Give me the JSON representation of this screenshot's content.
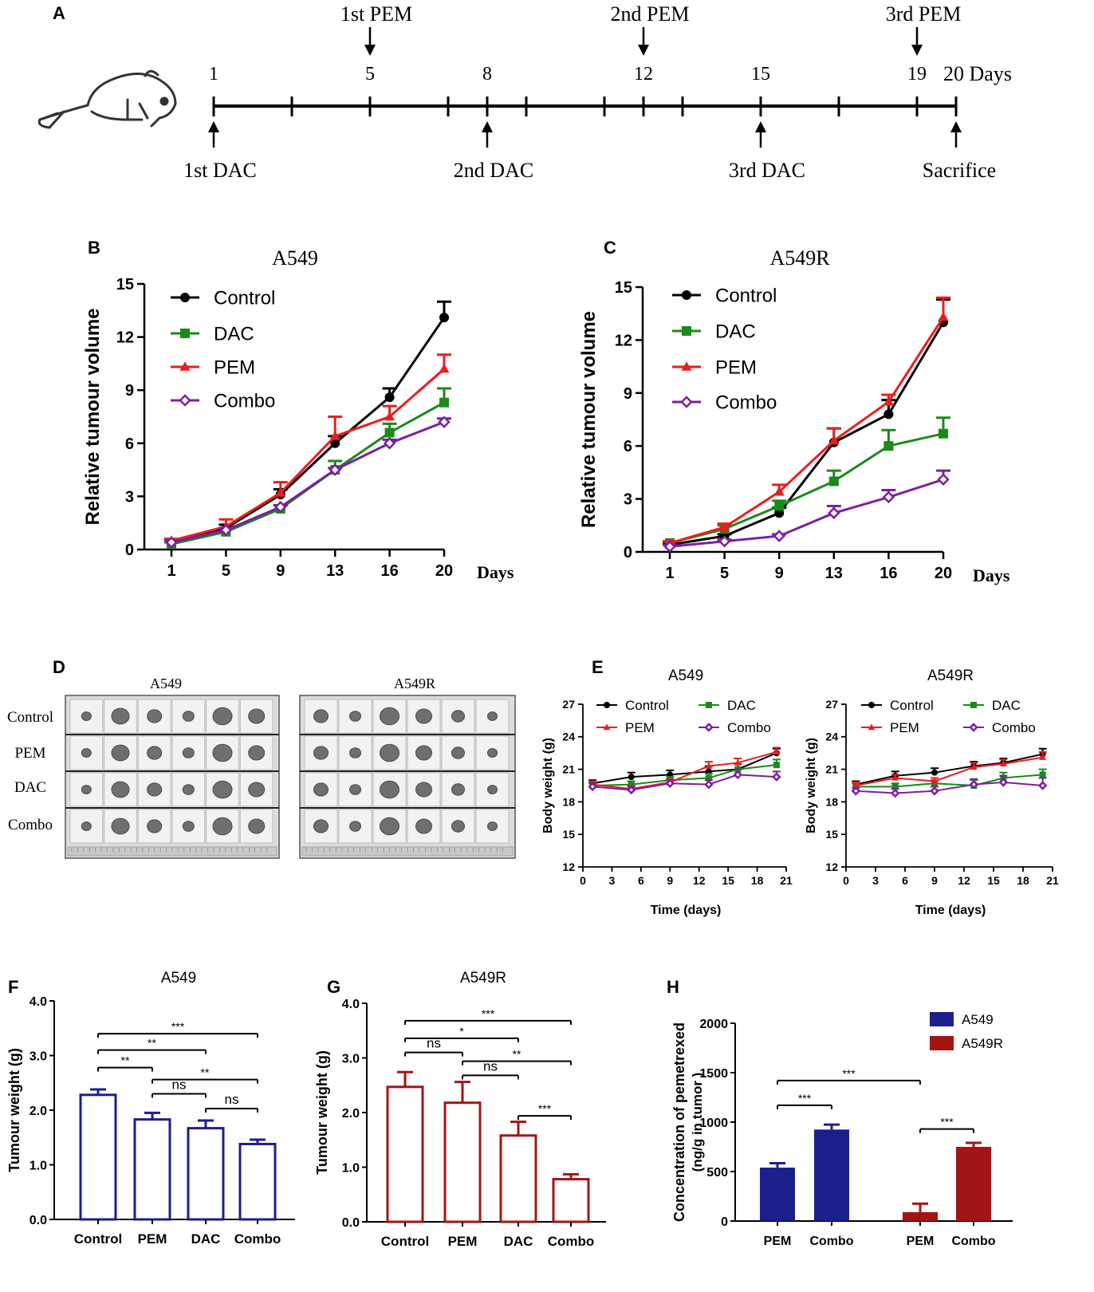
{
  "panel_letters": [
    "A",
    "B",
    "C",
    "D",
    "E",
    "F",
    "G",
    "H"
  ],
  "timeline": {
    "day_labels": [
      "1",
      "5",
      "8",
      "12",
      "15",
      "19"
    ],
    "end_label": "20 Days",
    "pem_events": [
      {
        "label": "1st PEM",
        "day": 5
      },
      {
        "label": "2nd PEM",
        "day": 12
      },
      {
        "label": "3rd PEM",
        "day": 19
      }
    ],
    "dac_events": [
      {
        "label": "1st DAC",
        "day": 1
      },
      {
        "label": "2nd DAC",
        "day": 8
      },
      {
        "label": "3rd DAC",
        "day": 15
      }
    ],
    "end_event": {
      "label": "Sacrifice",
      "day": 20
    },
    "mouse_icon": "mouse-icon"
  },
  "colors": {
    "Control": "#000000",
    "DAC": "#1a8a1a",
    "PEM": "#ee1c1c",
    "Combo": "#7a1fa2",
    "blue": "#1b1f8c",
    "darkred": "#a31515"
  },
  "photo_panel": {
    "titles": [
      "A549",
      "A549R"
    ],
    "row_labels": [
      "Control",
      "PEM",
      "DAC",
      "Combo"
    ]
  },
  "chart_data": [
    {
      "id": "B",
      "type": "line",
      "title": "A549",
      "xlabel": "Days",
      "ylabel": "Relative tumour volume",
      "categories": [
        "1",
        "5",
        "9",
        "13",
        "16",
        "20"
      ],
      "ylim": [
        0,
        15
      ],
      "yticks": [
        "0",
        "3",
        "6",
        "9",
        "12",
        "15"
      ],
      "legend": {
        "position": "top-left"
      },
      "series": [
        {
          "name": "Control",
          "marker": "circle",
          "values": [
            0.4,
            1.2,
            3.1,
            6.0,
            8.6,
            13.1
          ],
          "errors": [
            0.1,
            0.2,
            0.3,
            0.4,
            0.5,
            0.9
          ]
        },
        {
          "name": "DAC",
          "marker": "square",
          "values": [
            0.3,
            1.0,
            2.3,
            4.5,
            6.6,
            8.3
          ],
          "errors": [
            0.1,
            0.2,
            0.2,
            0.5,
            0.5,
            0.8
          ]
        },
        {
          "name": "PEM",
          "marker": "triangle",
          "values": [
            0.5,
            1.3,
            3.2,
            6.4,
            7.5,
            10.2
          ],
          "errors": [
            0.1,
            0.4,
            0.6,
            1.1,
            0.6,
            0.8
          ]
        },
        {
          "name": "Combo",
          "marker": "diamond",
          "values": [
            0.4,
            1.1,
            2.4,
            4.5,
            6.0,
            7.2
          ],
          "errors": [
            0.1,
            0.1,
            0.1,
            0.1,
            0.2,
            0.2
          ]
        }
      ]
    },
    {
      "id": "C",
      "type": "line",
      "title": "A549R",
      "xlabel": "Days",
      "ylabel": "Relative tumour volume",
      "categories": [
        "1",
        "5",
        "9",
        "13",
        "16",
        "20"
      ],
      "ylim": [
        0,
        15
      ],
      "yticks": [
        "0",
        "3",
        "6",
        "9",
        "12",
        "15"
      ],
      "legend": {
        "position": "top-left"
      },
      "series": [
        {
          "name": "Control",
          "marker": "circle",
          "values": [
            0.4,
            0.9,
            2.2,
            6.2,
            7.8,
            13.0
          ],
          "errors": [
            0.1,
            0.1,
            0.3,
            0.8,
            0.8,
            1.3
          ]
        },
        {
          "name": "DAC",
          "marker": "square",
          "values": [
            0.5,
            1.3,
            2.6,
            4.0,
            6.0,
            6.7
          ],
          "errors": [
            0.1,
            0.2,
            0.3,
            0.6,
            0.9,
            0.9
          ]
        },
        {
          "name": "PEM",
          "marker": "triangle",
          "values": [
            0.5,
            1.4,
            3.4,
            6.3,
            8.5,
            13.3
          ],
          "errors": [
            0.1,
            0.2,
            0.4,
            0.7,
            0.4,
            1.1
          ]
        },
        {
          "name": "Combo",
          "marker": "diamond",
          "values": [
            0.3,
            0.6,
            0.9,
            2.2,
            3.1,
            4.1
          ],
          "errors": [
            0.1,
            0.1,
            0.1,
            0.4,
            0.4,
            0.5
          ]
        }
      ]
    },
    {
      "id": "E1",
      "type": "line",
      "title": "A549",
      "xlabel": "Time (days)",
      "ylabel": "Body weight (g)",
      "xlim": [
        0,
        21
      ],
      "xticks": [
        "0",
        "3",
        "6",
        "9",
        "12",
        "15",
        "18",
        "21"
      ],
      "ylim": [
        12,
        27
      ],
      "yticks": [
        "12",
        "15",
        "18",
        "21",
        "24",
        "27"
      ],
      "legend": {
        "position": "top"
      },
      "x": [
        1,
        5,
        9,
        13,
        16,
        20
      ],
      "series": [
        {
          "name": "Control",
          "marker": "circle",
          "values": [
            19.7,
            20.3,
            20.5,
            20.8,
            21.0,
            22.5
          ],
          "errors": [
            0.3,
            0.4,
            0.4,
            0.5,
            0.5,
            0.4
          ]
        },
        {
          "name": "DAC",
          "marker": "square",
          "values": [
            19.5,
            19.6,
            20.0,
            20.2,
            21.0,
            21.4
          ],
          "errors": [
            0.3,
            0.3,
            0.3,
            0.4,
            0.5,
            0.5
          ]
        },
        {
          "name": "PEM",
          "marker": "triangle",
          "values": [
            19.6,
            19.2,
            19.8,
            21.3,
            21.6,
            22.6
          ],
          "errors": [
            0.3,
            0.3,
            0.3,
            0.4,
            0.4,
            0.4
          ]
        },
        {
          "name": "Combo",
          "marker": "diamond",
          "values": [
            19.4,
            19.1,
            19.7,
            19.6,
            20.5,
            20.3
          ],
          "errors": [
            0.3,
            0.3,
            0.3,
            0.4,
            0.5,
            0.5
          ]
        }
      ]
    },
    {
      "id": "E2",
      "type": "line",
      "title": "A549R",
      "xlabel": "Time (days)",
      "ylabel": "Body weight (g)",
      "xlim": [
        0,
        21
      ],
      "xticks": [
        "0",
        "3",
        "6",
        "9",
        "12",
        "15",
        "18",
        "21"
      ],
      "ylim": [
        12,
        27
      ],
      "yticks": [
        "12",
        "15",
        "18",
        "21",
        "24",
        "27"
      ],
      "legend": {
        "position": "top"
      },
      "x": [
        1,
        5,
        9,
        13,
        16,
        20
      ],
      "series": [
        {
          "name": "Control",
          "marker": "circle",
          "values": [
            19.6,
            20.4,
            20.7,
            21.3,
            21.6,
            22.4
          ],
          "errors": [
            0.3,
            0.4,
            0.4,
            0.4,
            0.4,
            0.5
          ]
        },
        {
          "name": "DAC",
          "marker": "square",
          "values": [
            19.4,
            19.4,
            19.7,
            19.5,
            20.2,
            20.5
          ],
          "errors": [
            0.3,
            0.3,
            0.3,
            0.5,
            0.5,
            0.5
          ]
        },
        {
          "name": "PEM",
          "marker": "triangle",
          "values": [
            19.5,
            20.2,
            19.9,
            21.2,
            21.5,
            22.1
          ],
          "errors": [
            0.3,
            0.3,
            0.3,
            0.4,
            0.4,
            0.5
          ]
        },
        {
          "name": "Combo",
          "marker": "diamond",
          "values": [
            19.0,
            18.8,
            19.0,
            19.6,
            19.8,
            19.5
          ],
          "errors": [
            0.3,
            0.4,
            0.4,
            0.5,
            0.6,
            0.7
          ]
        }
      ]
    },
    {
      "id": "F",
      "type": "bar",
      "title": "A549",
      "ylabel": "Tumour weight (g)",
      "categories": [
        "Control",
        "PEM",
        "DAC",
        "Combo"
      ],
      "values": [
        2.28,
        1.83,
        1.67,
        1.38
      ],
      "errors": [
        0.1,
        0.12,
        0.14,
        0.08
      ],
      "ylim": [
        0,
        4
      ],
      "yticks": [
        "0.0",
        "1.0",
        "2.0",
        "3.0",
        "4.0"
      ],
      "color": "blue",
      "comparisons": [
        {
          "from": 0,
          "to": 3,
          "level": 3.4,
          "label": "***"
        },
        {
          "from": 0,
          "to": 2,
          "level": 3.1,
          "label": "**"
        },
        {
          "from": 0,
          "to": 1,
          "level": 2.78,
          "label": "**"
        },
        {
          "from": 1,
          "to": 3,
          "level": 2.56,
          "label": "**"
        },
        {
          "from": 1,
          "to": 2,
          "level": 2.3,
          "label": "ns"
        },
        {
          "from": 2,
          "to": 3,
          "level": 2.03,
          "label": "ns"
        }
      ]
    },
    {
      "id": "G",
      "type": "bar",
      "title": "A549R",
      "ylabel": "Tumour weight (g)",
      "categories": [
        "Control",
        "PEM",
        "DAC",
        "Combo"
      ],
      "values": [
        2.47,
        2.18,
        1.58,
        0.78
      ],
      "errors": [
        0.27,
        0.38,
        0.25,
        0.09
      ],
      "ylim": [
        0,
        4
      ],
      "yticks": [
        "0.0",
        "1.0",
        "2.0",
        "3.0",
        "4.0"
      ],
      "color": "darkred",
      "comparisons": [
        {
          "from": 0,
          "to": 3,
          "level": 3.68,
          "label": "***"
        },
        {
          "from": 0,
          "to": 2,
          "level": 3.36,
          "label": "*"
        },
        {
          "from": 0,
          "to": 1,
          "level": 3.1,
          "label": "ns"
        },
        {
          "from": 1,
          "to": 3,
          "level": 2.94,
          "label": "**"
        },
        {
          "from": 1,
          "to": 2,
          "level": 2.68,
          "label": "ns"
        },
        {
          "from": 2,
          "to": 3,
          "level": 1.94,
          "label": "***"
        }
      ]
    },
    {
      "id": "H",
      "type": "bar",
      "ylabel": "Concentration of pemetrexed",
      "ylabel2": "(ng/g in tumor )",
      "categories": [
        "PEM",
        "Combo",
        "PEM",
        "Combo"
      ],
      "values": [
        540,
        925,
        90,
        750
      ],
      "errors": [
        45,
        50,
        85,
        40
      ],
      "bar_series": [
        "A549",
        "A549",
        "A549R",
        "A549R"
      ],
      "ylim": [
        0,
        2000
      ],
      "yticks": [
        "0",
        "500",
        "1000",
        "1500",
        "2000"
      ],
      "legend": {
        "position": "top-right",
        "entries": [
          {
            "name": "A549",
            "color": "blue"
          },
          {
            "name": "A549R",
            "color": "darkred"
          }
        ]
      },
      "comparisons": [
        {
          "from": 0,
          "to": 2,
          "level": 1420,
          "label": "***"
        },
        {
          "from": 0,
          "to": 1,
          "level": 1170,
          "label": "***"
        },
        {
          "from": 2,
          "to": 3,
          "level": 930,
          "label": "***"
        }
      ]
    }
  ]
}
